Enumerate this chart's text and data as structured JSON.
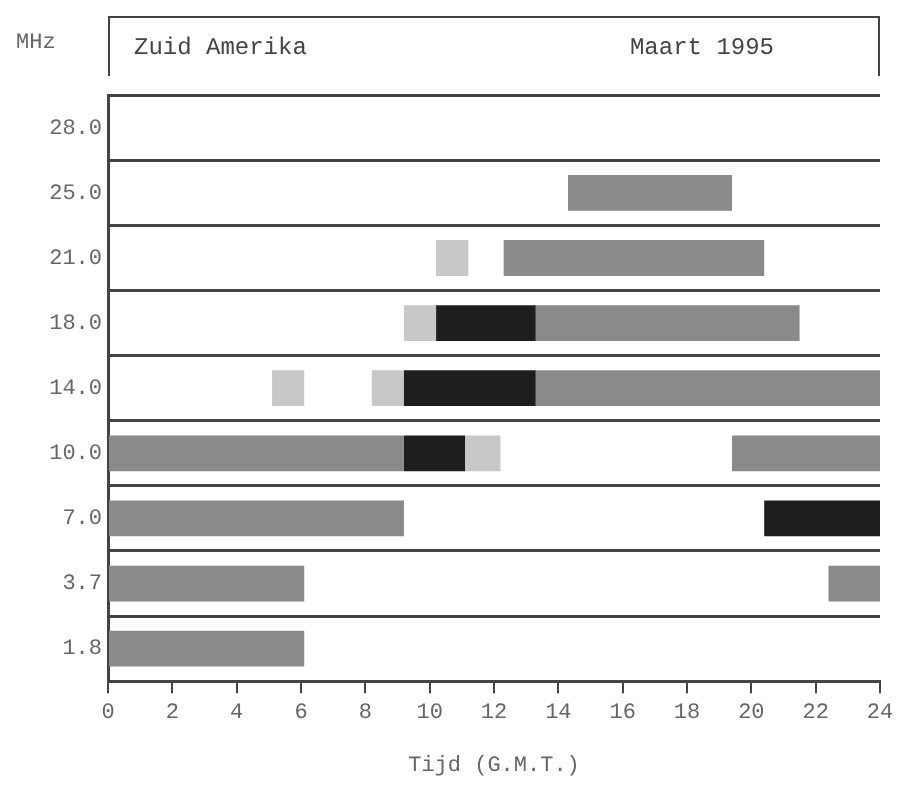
{
  "chart_data": {
    "type": "bar",
    "orientation": "horizontal",
    "title": "Zuid Amerika",
    "subtitle": "Maart 1995",
    "xlabel": "Tijd (G.M.T.)",
    "ylabel": "MHz",
    "categories": [
      "28.0",
      "25.0",
      "21.0",
      "18.0",
      "14.0",
      "10.0",
      "7.0",
      "3.7",
      "1.8"
    ],
    "series": [
      {
        "color": "#8a8a8a",
        "base": [
          null,
          14.3,
          12.3,
          13.3,
          13.3,
          0,
          0,
          0,
          0
        ],
        "values": [
          null,
          5.1,
          8.1,
          8.2,
          10.7,
          9.2,
          9.2,
          6.1,
          6.1
        ]
      },
      {
        "color": "#8a8a8a",
        "base": [
          null,
          null,
          null,
          null,
          null,
          19.4,
          null,
          22.4,
          null
        ],
        "values": [
          null,
          null,
          null,
          null,
          null,
          4.6,
          null,
          1.6,
          null
        ]
      },
      {
        "color": "#1e1e1e",
        "base": [
          null,
          null,
          null,
          10.2,
          9.2,
          9.2,
          20.4,
          null,
          null
        ],
        "values": [
          null,
          null,
          null,
          3.1,
          4.1,
          1.9,
          3.6,
          null,
          null
        ]
      },
      {
        "color": "#c8c8c8",
        "base": [
          null,
          null,
          10.2,
          9.2,
          8.2,
          11.1,
          null,
          null,
          null
        ],
        "values": [
          null,
          null,
          1.0,
          1.0,
          1.0,
          1.1,
          null,
          null,
          null
        ]
      },
      {
        "color": "#c8c8c8",
        "base": [
          null,
          null,
          null,
          null,
          5.1,
          null,
          null,
          null,
          null
        ],
        "values": [
          null,
          null,
          null,
          null,
          1.0,
          null,
          null,
          null,
          null
        ]
      }
    ],
    "xlim": [
      0,
      24
    ],
    "xticks": [
      0,
      2,
      4,
      6,
      8,
      10,
      12,
      14,
      16,
      18,
      20,
      22,
      24
    ],
    "grid": "y",
    "legend": false
  }
}
